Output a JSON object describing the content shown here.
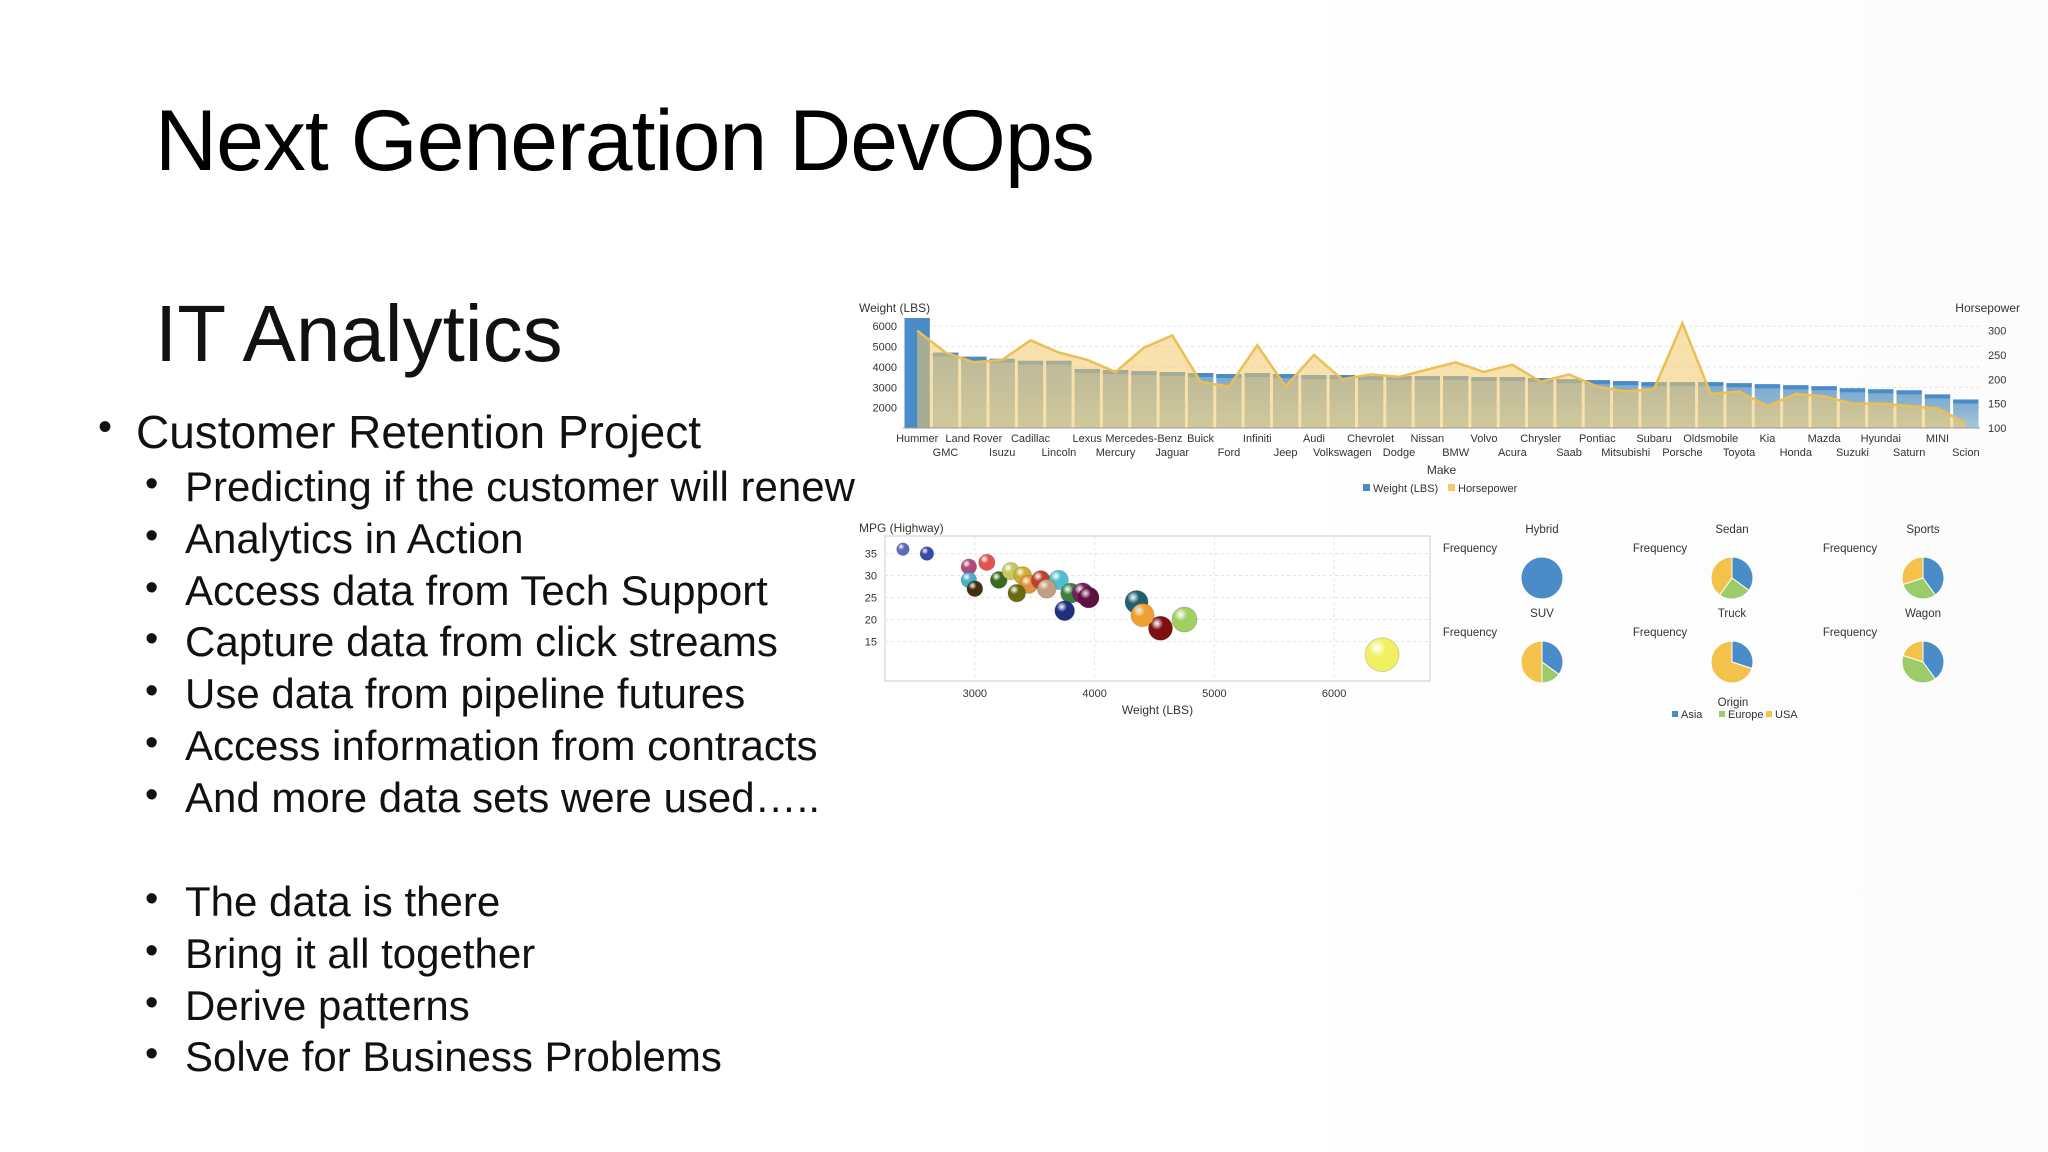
{
  "slide": {
    "title": "Next Generation DevOps",
    "subtitle": "IT Analytics",
    "bullets_level1": [
      "Customer Retention Project"
    ],
    "bullets_group1": [
      "Predicting if the customer will renew",
      "Analytics in Action",
      "Access data from Tech Support",
      "Capture data from click streams",
      "Use data from pipeline futures",
      "Access information from contracts",
      "And more data sets were used….."
    ],
    "bullets_group2": [
      "The data is there",
      "Bring it all together",
      "Derive patterns",
      "Solve for Business Problems"
    ]
  },
  "colors": {
    "weight_bar": "#4a8cc8",
    "horsepower_area": "#f4c96b",
    "asia": "#4a8cc8",
    "europe": "#9ccc6a",
    "usa": "#f4c24a"
  },
  "chart_data": [
    {
      "type": "bar",
      "ylabel": "Weight (LBS)",
      "y2label": "Horsepower",
      "xlabel": "Make",
      "yticks": [
        "6000",
        "5000",
        "4000",
        "3000",
        "2000"
      ],
      "y2ticks": [
        "300",
        "250",
        "200",
        "150",
        "100"
      ],
      "ylim": [
        1000,
        6500
      ],
      "y2lim": [
        100,
        330
      ],
      "categories": [
        "Hummer",
        "GMC",
        "Land Rover",
        "Isuzu",
        "Cadillac",
        "Lincoln",
        "Lexus",
        "Mercury",
        "Mercedes-Benz",
        "Jaguar",
        "Buick",
        "Ford",
        "Infiniti",
        "Jeep",
        "Audi",
        "Volkswagen",
        "Chevrolet",
        "Dodge",
        "Nissan",
        "BMW",
        "Volvo",
        "Acura",
        "Chrysler",
        "Saab",
        "Pontiac",
        "Mitsubishi",
        "Subaru",
        "Porsche",
        "Oldsmobile",
        "Toyota",
        "Kia",
        "Honda",
        "Mazda",
        "Suzuki",
        "Hyundai",
        "Saturn",
        "MINI",
        "Scion"
      ],
      "series": [
        {
          "name": "Weight (LBS)",
          "values": [
            6400,
            4700,
            4500,
            4400,
            4300,
            4300,
            3900,
            3850,
            3800,
            3750,
            3700,
            3650,
            3700,
            3650,
            3600,
            3600,
            3550,
            3550,
            3550,
            3550,
            3500,
            3500,
            3450,
            3400,
            3350,
            3300,
            3250,
            3250,
            3250,
            3200,
            3150,
            3100,
            3050,
            2950,
            2900,
            2850,
            2650,
            2400
          ]
        },
        {
          "name": "Horsepower",
          "values": [
            300,
            255,
            235,
            240,
            280,
            255,
            240,
            215,
            265,
            290,
            195,
            185,
            270,
            185,
            250,
            200,
            210,
            205,
            220,
            235,
            215,
            230,
            195,
            210,
            185,
            175,
            180,
            315,
            170,
            175,
            145,
            170,
            165,
            150,
            150,
            145,
            140,
            110
          ]
        }
      ],
      "legend": [
        "Weight (LBS)",
        "Horsepower"
      ],
      "top_labels": [
        "Hummer",
        "Land Rover",
        "Cadillac",
        "Lexus",
        "Mercedes-Benz",
        "Buick",
        "Infiniti",
        "Audi",
        "Chevrolet",
        "Nissan",
        "Volvo",
        "Chrysler",
        "Pontiac",
        "Subaru",
        "Oldsmobile",
        "Kia",
        "Mazda",
        "Hyundai",
        "MINI"
      ],
      "bottom_labels": [
        "GMC",
        "Isuzu",
        "Lincoln",
        "Mercury",
        "Jaguar",
        "Ford",
        "Jeep",
        "Volkswagen",
        "Dodge",
        "BMW",
        "Acura",
        "Saab",
        "Mitsubishi",
        "Porsche",
        "Toyota",
        "Honda",
        "Suzuki",
        "Saturn",
        "Scion"
      ]
    },
    {
      "type": "scatter",
      "ylabel": "MPG (Highway)",
      "xlabel": "Weight (LBS)",
      "xticks": [
        "3000",
        "4000",
        "5000",
        "6000"
      ],
      "yticks": [
        "35",
        "30",
        "25",
        "20",
        "15"
      ],
      "xlim": [
        2250,
        6800
      ],
      "ylim": [
        6,
        39
      ],
      "points": [
        {
          "x": 2400,
          "y": 36,
          "color": "#5b6abf"
        },
        {
          "x": 2600,
          "y": 35,
          "color": "#3b4aa8"
        },
        {
          "x": 2950,
          "y": 32,
          "color": "#b04a7a"
        },
        {
          "x": 3100,
          "y": 33,
          "color": "#e0554c"
        },
        {
          "x": 2950,
          "y": 29,
          "color": "#4ab0c8"
        },
        {
          "x": 3000,
          "y": 27,
          "color": "#403010"
        },
        {
          "x": 3200,
          "y": 29,
          "color": "#3a6a20"
        },
        {
          "x": 3300,
          "y": 31,
          "color": "#c8c860"
        },
        {
          "x": 3400,
          "y": 30,
          "color": "#d0b030"
        },
        {
          "x": 3450,
          "y": 28,
          "color": "#e09040"
        },
        {
          "x": 3350,
          "y": 26,
          "color": "#6a6a10"
        },
        {
          "x": 3550,
          "y": 29,
          "color": "#c04030"
        },
        {
          "x": 3700,
          "y": 29,
          "color": "#50c0d0"
        },
        {
          "x": 3600,
          "y": 27,
          "color": "#c0a080"
        },
        {
          "x": 3800,
          "y": 26,
          "color": "#408040"
        },
        {
          "x": 3900,
          "y": 26,
          "color": "#702060"
        },
        {
          "x": 3950,
          "y": 25,
          "color": "#601040"
        },
        {
          "x": 3750,
          "y": 22,
          "color": "#203080"
        },
        {
          "x": 4350,
          "y": 24,
          "color": "#206070"
        },
        {
          "x": 4550,
          "y": 18,
          "color": "#801010"
        },
        {
          "x": 4400,
          "y": 21,
          "color": "#f0a030"
        },
        {
          "x": 4750,
          "y": 20,
          "color": "#a0d060"
        },
        {
          "x": 6400,
          "y": 12,
          "color": "#f0f060"
        }
      ]
    },
    {
      "type": "pie",
      "facet_label": "Frequency",
      "xlabel": "Origin",
      "legend": [
        "Asia",
        "Europe",
        "USA"
      ],
      "facets": [
        {
          "name": "Hybrid",
          "values": [
            100,
            0,
            0
          ]
        },
        {
          "name": "Sedan",
          "values": [
            35,
            25,
            40
          ]
        },
        {
          "name": "Sports",
          "values": [
            40,
            30,
            30
          ]
        },
        {
          "name": "SUV",
          "values": [
            35,
            15,
            50
          ]
        },
        {
          "name": "Truck",
          "values": [
            30,
            0,
            70
          ]
        },
        {
          "name": "Wagon",
          "values": [
            40,
            40,
            20
          ]
        }
      ]
    }
  ]
}
